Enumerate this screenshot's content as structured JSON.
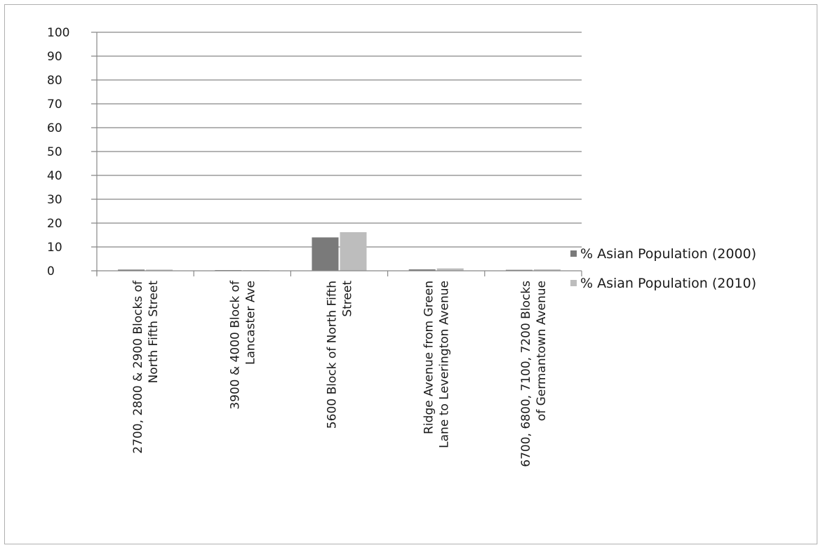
{
  "chart_data": {
    "type": "bar",
    "categories": [
      [
        "2700, 2800 & 2900 Blocks of",
        "North Fifth Street"
      ],
      [
        "3900 & 4000 Block of",
        "Lancaster Ave"
      ],
      [
        "5600 Block of North Fifth",
        "Street"
      ],
      [
        "Ridge Avenue from Green",
        "Lane to Leverington Avenue"
      ],
      [
        "6700, 6800, 7100, 7200 Blocks",
        "of Germantown Avenue"
      ]
    ],
    "series": [
      {
        "name": "% Asian Population (2000)",
        "values": [
          0.5,
          0.2,
          14.0,
          0.6,
          0.4
        ]
      },
      {
        "name": "% Asian Population (2010)",
        "values": [
          0.5,
          0.2,
          16.2,
          1.0,
          0.6
        ]
      }
    ],
    "title": "",
    "xlabel": "",
    "ylabel": "",
    "ylim": [
      0,
      100
    ],
    "yticks": [
      "0",
      "10",
      "20",
      "30",
      "40",
      "50",
      "60",
      "70",
      "80",
      "90",
      "100"
    ],
    "grid": true,
    "legend_position": "right",
    "colors": [
      "#7a7a7a",
      "#bdbdbd"
    ],
    "gridline_color": "#888888"
  }
}
